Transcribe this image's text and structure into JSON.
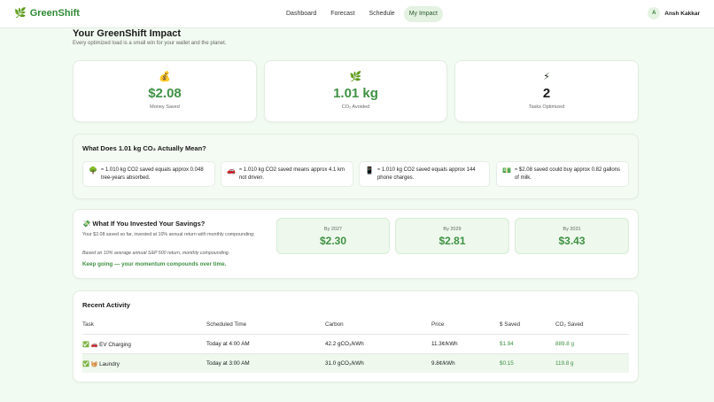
{
  "nav": {
    "brand_icon": "🌿",
    "brand": "GreenShift",
    "links": [
      "Dashboard",
      "Forecast",
      "Schedule",
      "My Impact"
    ],
    "active": "My Impact",
    "user_initial": "A",
    "user_name": "Ansh Kakkar"
  },
  "header": {
    "title": "Your GreenShift Impact",
    "subtitle": "Every optimized load is a small win for your wallet and the planet."
  },
  "stats": [
    {
      "icon": "💰",
      "value": "$2.08",
      "label": "Money Saved"
    },
    {
      "icon": "🌿",
      "value": "1.01 kg",
      "label": "CO₂ Avoided"
    },
    {
      "icon": "⚡",
      "value": "2",
      "label": "Tasks Optimized"
    }
  ],
  "equivalents": {
    "title": "What Does 1.01 kg CO₂ Actually Mean?",
    "items": [
      {
        "icon": "🌳",
        "text": "≈ 1.010 kg CO2 saved equals approx 0.048 tree-years absorbed."
      },
      {
        "icon": "🚗",
        "text": "≈ 1.010 kg CO2 saved means approx 4.1 km not driven."
      },
      {
        "icon": "📱",
        "text": "≈ 1.010 kg CO2 saved equals approx 144 phone charges."
      },
      {
        "icon": "💵",
        "text": "≈ $2.08 saved could buy approx 0.82 gallons of milk."
      }
    ]
  },
  "invest": {
    "title": "💸 What If You Invested Your Savings?",
    "desc": "Your $2.08 saved so far, invested at 10% annual return with monthly compounding:",
    "note": "Based on 10% average annual S&P 500 return, monthly compounding.",
    "keep": "Keep going — your momentum compounds over time.",
    "projections": [
      {
        "year": "By 2027",
        "value": "$2.30"
      },
      {
        "year": "By 2029",
        "value": "$2.81"
      },
      {
        "year": "By 2031",
        "value": "$3.43"
      }
    ]
  },
  "activity": {
    "title": "Recent Activity",
    "headers": [
      "Task",
      "Scheduled Time",
      "Carbon",
      "Price",
      "$ Saved",
      "CO₂ Saved"
    ],
    "rows": [
      [
        "✅ 🚗 EV Charging",
        "Today at 4:00 AM",
        "42.2 gCO₂/kWh",
        "11.3¢/kWh",
        "$1.94",
        "889.8 g"
      ],
      [
        "✅ 🧺 Laundry",
        "Today at 3:00 AM",
        "31.0 gCO₂/kWh",
        "9.8¢/kWh",
        "$0.15",
        "119.8 g"
      ]
    ]
  }
}
